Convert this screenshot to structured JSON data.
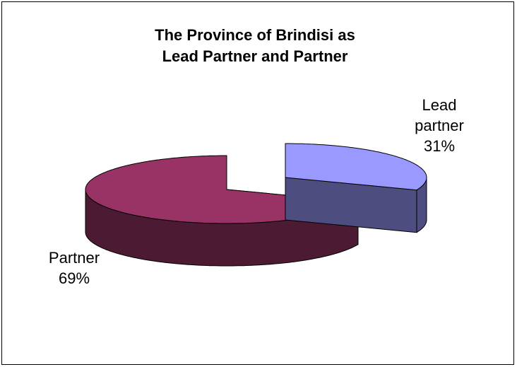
{
  "chart_data": {
    "type": "pie",
    "title": "The Province of Brindisi as Lead Partner and Partner",
    "categories": [
      "Lead partner",
      "Partner"
    ],
    "values": [
      31,
      69
    ],
    "value_labels": [
      "31%",
      "69%"
    ],
    "colors": [
      "#9999FF",
      "#993366"
    ],
    "three_d": true,
    "exploded": true
  }
}
